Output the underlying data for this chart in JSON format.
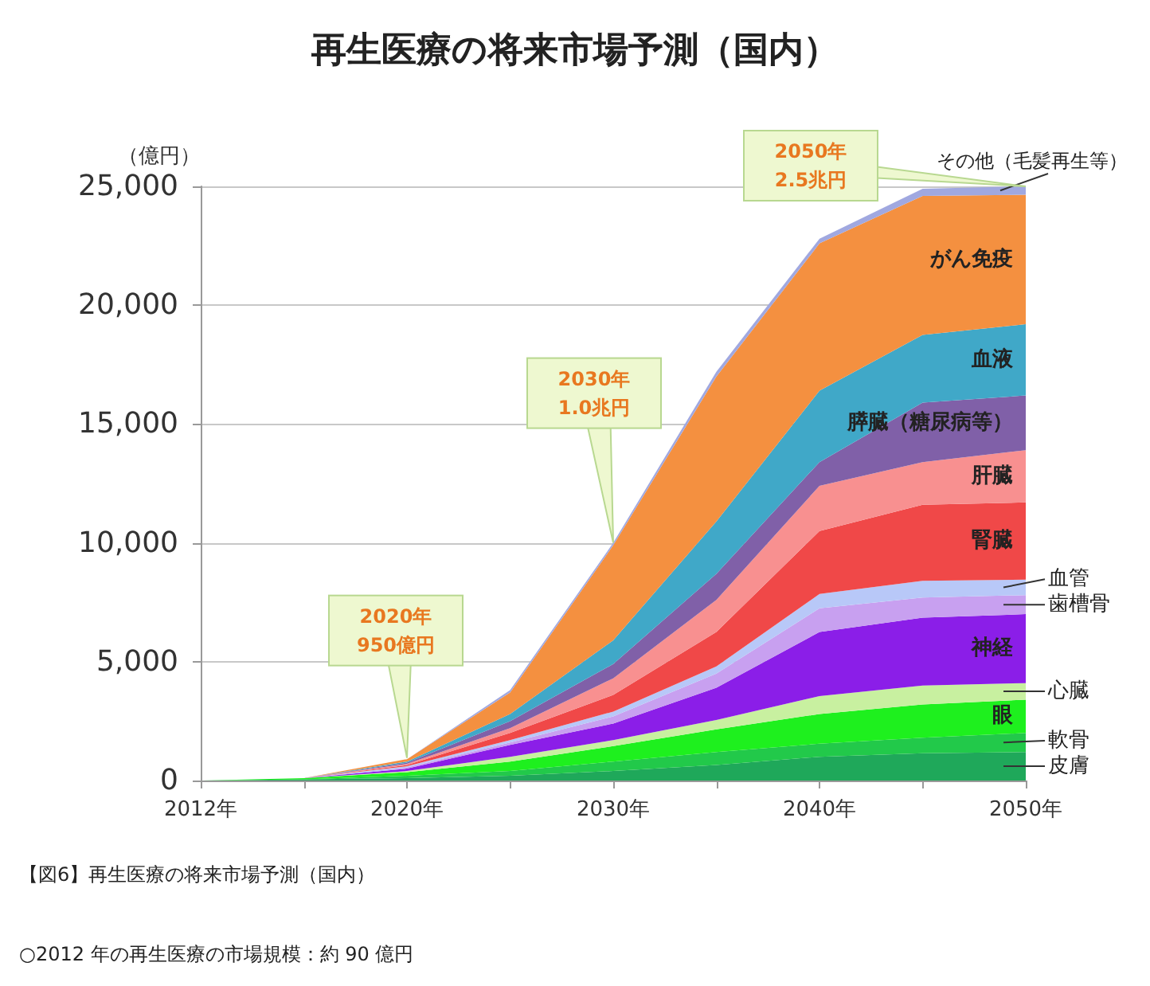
{
  "chart_data": {
    "type": "area",
    "title": "再生医療の将来市場予測（国内）",
    "ylabel": "（億円）",
    "stacked": true,
    "grid": "y",
    "categories": [
      "2012年",
      null,
      "2020年",
      null,
      "2030年",
      null,
      "2040年",
      null,
      "2050年"
    ],
    "ylim": [
      0,
      25000
    ],
    "yticks": [
      0,
      {
        "value": 5000,
        "label": "5,000"
      },
      {
        "value": 10000,
        "label": "10,000"
      },
      {
        "value": 15000,
        "label": "15,000"
      },
      {
        "value": 20000,
        "label": "20,000"
      },
      {
        "value": 25000,
        "label": "25,000"
      }
    ],
    "series": [
      {
        "name": "皮膚",
        "color": "#1fa85a",
        "values": [
          0,
          50,
          100,
          200,
          400,
          650,
          1000,
          1150,
          1200
        ]
      },
      {
        "name": "軟骨",
        "color": "#22c94a",
        "values": [
          0,
          0,
          100,
          200,
          400,
          550,
          550,
          650,
          800
        ]
      },
      {
        "name": "眼",
        "color": "#1ef01e",
        "values": [
          0,
          50,
          150,
          400,
          650,
          950,
          1250,
          1400,
          1400
        ]
      },
      {
        "name": "心臓",
        "color": "#c8f0a0",
        "values": [
          0,
          0,
          50,
          200,
          250,
          400,
          750,
          800,
          700
        ]
      },
      {
        "name": "神経",
        "color": "#8b1ee8",
        "values": [
          0,
          0,
          100,
          500,
          700,
          1350,
          2700,
          2850,
          2900
        ]
      },
      {
        "name": "歯槽骨",
        "color": "#c8a0f0",
        "values": [
          0,
          0,
          50,
          100,
          300,
          600,
          1000,
          850,
          800
        ]
      },
      {
        "name": "血管",
        "color": "#b8c8f8",
        "values": [
          0,
          0,
          50,
          100,
          200,
          300,
          600,
          700,
          650
        ]
      },
      {
        "name": "腎臓",
        "color": "#f04848",
        "values": [
          0,
          0,
          50,
          300,
          700,
          1450,
          2650,
          3200,
          3250
        ]
      },
      {
        "name": "肝臓",
        "color": "#f89090",
        "values": [
          0,
          0,
          50,
          200,
          700,
          1350,
          1900,
          1800,
          2200
        ]
      },
      {
        "name": "膵臓（糖尿病等）",
        "color": "#8060a8",
        "values": [
          0,
          0,
          50,
          300,
          600,
          1100,
          1000,
          2500,
          2300
        ]
      },
      {
        "name": "血液",
        "color": "#40a8c8",
        "values": [
          0,
          0,
          50,
          300,
          1000,
          2200,
          3000,
          2850,
          3000
        ]
      },
      {
        "name": "がん免疫",
        "color": "#f49040",
        "values": [
          0,
          0,
          100,
          900,
          4000,
          6100,
          6200,
          5850,
          5450
        ]
      },
      {
        "name": "その他（毛髪再生等）",
        "color": "#a0a8e0",
        "values": [
          0,
          0,
          0,
          100,
          100,
          200,
          200,
          300,
          350
        ]
      }
    ],
    "annotations": [
      {
        "text": "2020年\n950億円",
        "x": "2020年",
        "y": 950
      },
      {
        "text": "2030年\n1.0兆円",
        "x": "2030年",
        "y": 10000
      },
      {
        "text": "2050年\n2.5兆円",
        "x": "2050年",
        "y": 25000
      },
      "【図6】再生医療の将来市場予測（国内）",
      "○2012 年の再生医療の市場規模：約 90 億円"
    ]
  }
}
